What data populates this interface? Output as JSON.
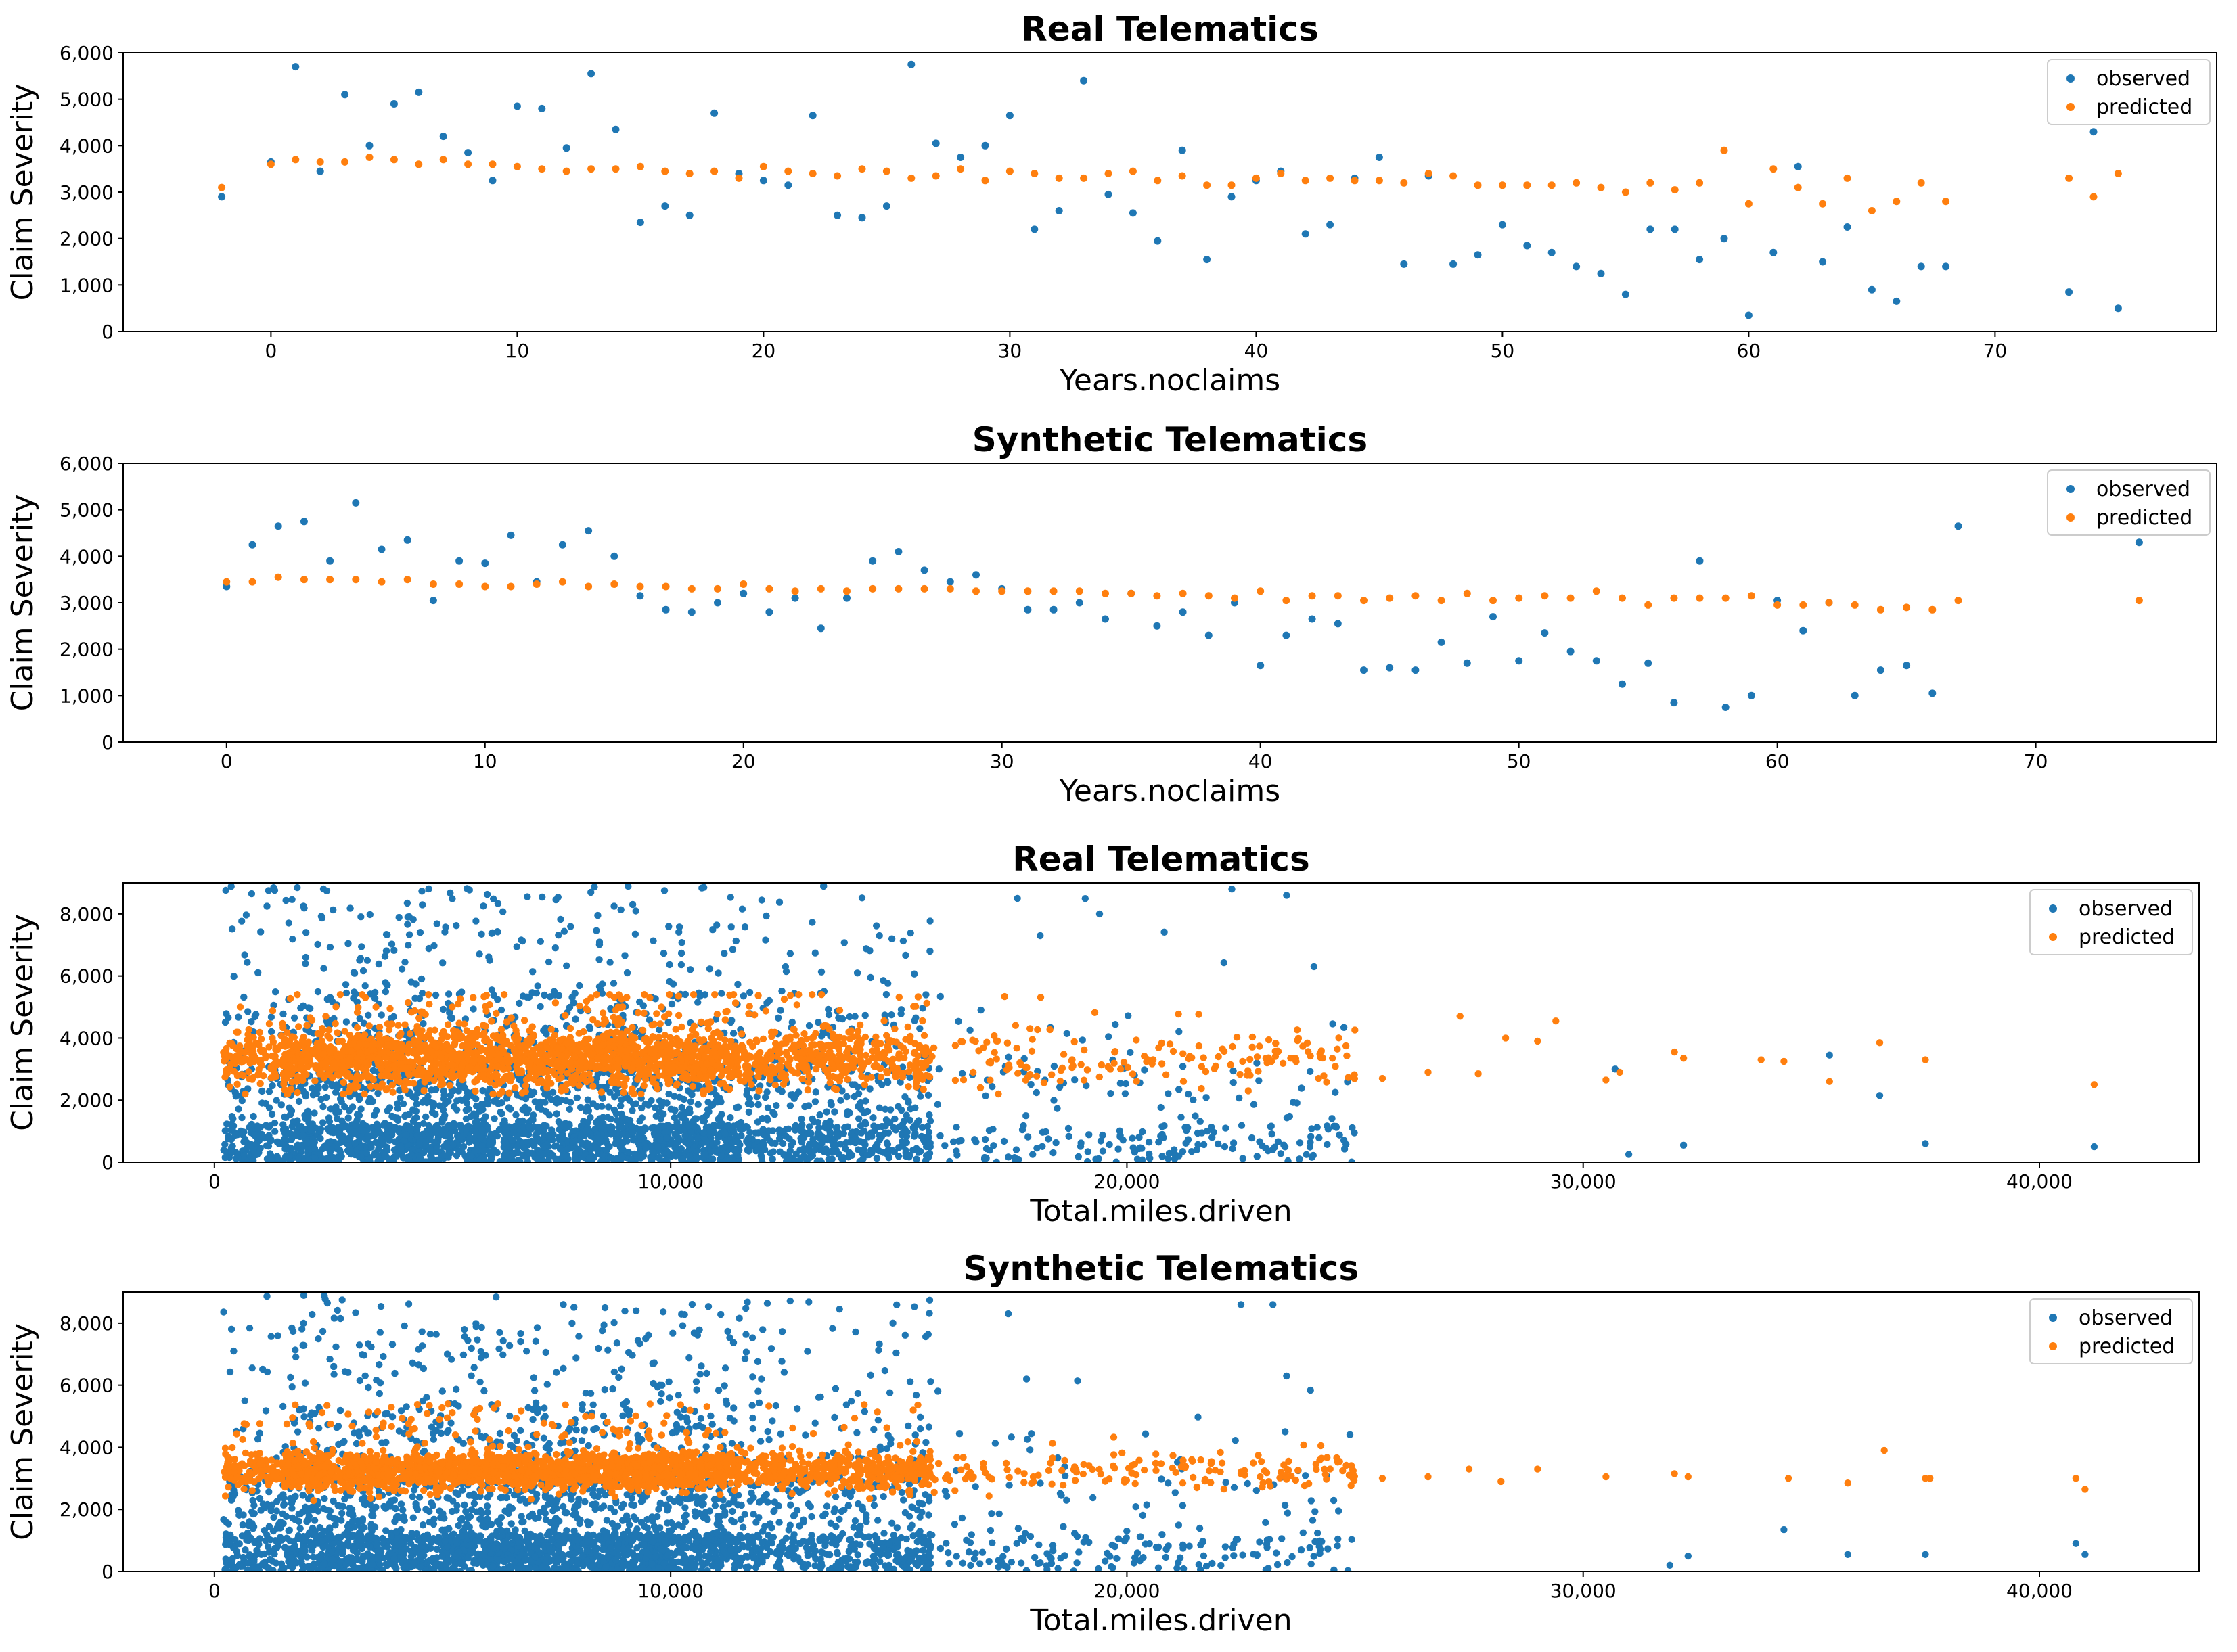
{
  "colors": {
    "observed": "#1f77b4",
    "predicted": "#ff7f0e"
  },
  "chart_data": [
    {
      "type": "scatter",
      "title": "Real Telematics",
      "xlabel": "Years.noclaims",
      "ylabel": "Claim Severity",
      "xlim": [
        -6,
        79
      ],
      "ylim": [
        0,
        6000
      ],
      "xticks": [
        0,
        10,
        20,
        30,
        40,
        50,
        60,
        70
      ],
      "xtick_labels": [
        "0",
        "10",
        "20",
        "30",
        "40",
        "50",
        "60",
        "70"
      ],
      "yticks": [
        0,
        1000,
        2000,
        3000,
        4000,
        5000,
        6000
      ],
      "ytick_labels": [
        "0",
        "1,000",
        "2,000",
        "3,000",
        "4,000",
        "5,000",
        "6,000"
      ],
      "legend": {
        "placement": "top-right",
        "entries": [
          "observed",
          "predicted"
        ]
      },
      "series": [
        {
          "name": "observed",
          "x": [
            -2,
            0,
            1,
            2,
            3,
            4,
            5,
            6,
            7,
            8,
            9,
            10,
            11,
            12,
            13,
            14,
            15,
            16,
            17,
            18,
            19,
            20,
            21,
            22,
            23,
            24,
            25,
            26,
            27,
            28,
            29,
            30,
            31,
            32,
            33,
            34,
            35,
            36,
            37,
            38,
            39,
            40,
            41,
            42,
            43,
            44,
            45,
            46,
            47,
            48,
            49,
            50,
            51,
            52,
            53,
            54,
            55,
            56,
            57,
            58,
            59,
            60,
            61,
            62,
            63,
            64,
            65,
            66,
            67,
            68,
            73,
            74,
            75
          ],
          "y": [
            2900,
            3650,
            5700,
            3450,
            5100,
            4000,
            4900,
            5150,
            4200,
            3850,
            3250,
            4850,
            4800,
            3950,
            5550,
            4350,
            2350,
            2700,
            2500,
            4700,
            3400,
            3250,
            3150,
            4650,
            2500,
            2450,
            2700,
            5750,
            4050,
            3750,
            4000,
            4650,
            2200,
            2600,
            5400,
            2950,
            2550,
            1950,
            3900,
            1550,
            2900,
            3250,
            3450,
            2100,
            2300,
            3300,
            3750,
            1450,
            3350,
            1450,
            1650,
            2300,
            1850,
            1700,
            1400,
            1250,
            800,
            2200,
            2200,
            1550,
            2000,
            350,
            1700,
            3550,
            1500,
            2250,
            900,
            650,
            1400,
            1400,
            850,
            4300,
            500
          ]
        },
        {
          "name": "predicted",
          "x": [
            -2,
            0,
            1,
            2,
            3,
            4,
            5,
            6,
            7,
            8,
            9,
            10,
            11,
            12,
            13,
            14,
            15,
            16,
            17,
            18,
            19,
            20,
            21,
            22,
            23,
            24,
            25,
            26,
            27,
            28,
            29,
            30,
            31,
            32,
            33,
            34,
            35,
            36,
            37,
            38,
            39,
            40,
            41,
            42,
            43,
            44,
            45,
            46,
            47,
            48,
            49,
            50,
            51,
            52,
            53,
            54,
            55,
            56,
            57,
            58,
            59,
            60,
            61,
            62,
            63,
            64,
            65,
            66,
            67,
            68,
            73,
            74,
            75
          ],
          "y": [
            3100,
            3600,
            3700,
            3650,
            3650,
            3750,
            3700,
            3600,
            3700,
            3600,
            3600,
            3550,
            3500,
            3450,
            3500,
            3500,
            3550,
            3450,
            3400,
            3450,
            3300,
            3550,
            3450,
            3400,
            3350,
            3500,
            3450,
            3300,
            3350,
            3500,
            3250,
            3450,
            3400,
            3300,
            3300,
            3400,
            3450,
            3250,
            3350,
            3150,
            3150,
            3300,
            3400,
            3250,
            3300,
            3250,
            3250,
            3200,
            3400,
            3350,
            3150,
            3150,
            3150,
            3150,
            3200,
            3100,
            3000,
            3200,
            3050,
            3200,
            3900,
            2750,
            3500,
            3100,
            2750,
            3300,
            2600,
            2800,
            3200,
            2800,
            3300,
            2900,
            3400
          ]
        }
      ]
    },
    {
      "type": "scatter",
      "title": "Synthetic Telematics",
      "xlabel": "Years.noclaims",
      "ylabel": "Claim Severity",
      "xlim": [
        -4,
        77
      ],
      "ylim": [
        0,
        6000
      ],
      "xticks": [
        0,
        10,
        20,
        30,
        40,
        50,
        60,
        70
      ],
      "xtick_labels": [
        "0",
        "10",
        "20",
        "30",
        "40",
        "50",
        "60",
        "70"
      ],
      "yticks": [
        0,
        1000,
        2000,
        3000,
        4000,
        5000,
        6000
      ],
      "ytick_labels": [
        "0",
        "1,000",
        "2,000",
        "3,000",
        "4,000",
        "5,000",
        "6,000"
      ],
      "legend": {
        "placement": "top-right",
        "entries": [
          "observed",
          "predicted"
        ]
      },
      "series": [
        {
          "name": "observed",
          "x": [
            0,
            1,
            2,
            3,
            4,
            5,
            6,
            7,
            8,
            9,
            10,
            11,
            12,
            13,
            14,
            15,
            16,
            17,
            18,
            19,
            20,
            21,
            22,
            23,
            24,
            25,
            26,
            27,
            28,
            29,
            30,
            31,
            32,
            33,
            34,
            35,
            36,
            37,
            38,
            39,
            40,
            41,
            42,
            43,
            44,
            45,
            46,
            47,
            48,
            49,
            50,
            51,
            52,
            53,
            54,
            55,
            56,
            57,
            58,
            59,
            60,
            61,
            62,
            63,
            64,
            65,
            66,
            67,
            74
          ],
          "y": [
            3350,
            4250,
            4650,
            4750,
            3900,
            5150,
            4150,
            4350,
            3050,
            3900,
            3850,
            4450,
            3450,
            4250,
            4550,
            4000,
            3150,
            2850,
            2800,
            3000,
            3200,
            2800,
            3100,
            2450,
            3100,
            3900,
            4100,
            3700,
            3450,
            3600,
            3300,
            2850,
            2850,
            3000,
            2650,
            3200,
            2500,
            2800,
            2300,
            3000,
            1650,
            2300,
            2650,
            2550,
            1550,
            1600,
            1550,
            2150,
            1700,
            2700,
            1750,
            2350,
            1950,
            1750,
            1250,
            1700,
            850,
            3900,
            750,
            1000,
            3050,
            2400,
            3000,
            1000,
            1550,
            1650,
            1050,
            4650,
            4300
          ]
        },
        {
          "name": "predicted",
          "x": [
            0,
            1,
            2,
            3,
            4,
            5,
            6,
            7,
            8,
            9,
            10,
            11,
            12,
            13,
            14,
            15,
            16,
            17,
            18,
            19,
            20,
            21,
            22,
            23,
            24,
            25,
            26,
            27,
            28,
            29,
            30,
            31,
            32,
            33,
            34,
            35,
            36,
            37,
            38,
            39,
            40,
            41,
            42,
            43,
            44,
            45,
            46,
            47,
            48,
            49,
            50,
            51,
            52,
            53,
            54,
            55,
            56,
            57,
            58,
            59,
            60,
            61,
            62,
            63,
            64,
            65,
            66,
            67,
            74
          ],
          "y": [
            3450,
            3450,
            3550,
            3500,
            3500,
            3500,
            3450,
            3500,
            3400,
            3400,
            3350,
            3350,
            3400,
            3450,
            3350,
            3400,
            3350,
            3350,
            3300,
            3300,
            3400,
            3300,
            3250,
            3300,
            3250,
            3300,
            3300,
            3300,
            3300,
            3250,
            3250,
            3250,
            3250,
            3250,
            3200,
            3200,
            3150,
            3200,
            3150,
            3100,
            3250,
            3050,
            3150,
            3150,
            3050,
            3100,
            3150,
            3050,
            3200,
            3050,
            3100,
            3150,
            3100,
            3250,
            3100,
            2950,
            3100,
            3100,
            3100,
            3150,
            2950,
            2950,
            3000,
            2950,
            2850,
            2900,
            2850,
            3050,
            3050
          ]
        }
      ]
    },
    {
      "type": "scatter",
      "title": "Real Telematics",
      "xlabel": "Total.miles.driven",
      "ylabel": "Claim Severity",
      "xlim": [
        -2000,
        43500
      ],
      "ylim": [
        0,
        9000
      ],
      "xticks": [
        0,
        10000,
        20000,
        30000,
        40000
      ],
      "xtick_labels": [
        "0",
        "10,000",
        "20,000",
        "30,000",
        "40,000"
      ],
      "yticks": [
        0,
        2000,
        4000,
        6000,
        8000
      ],
      "ytick_labels": [
        "0",
        "2,000",
        "4,000",
        "6,000",
        "8,000"
      ],
      "legend": {
        "placement": "top-right",
        "entries": [
          "observed",
          "predicted"
        ]
      },
      "series": [
        {
          "name": "observed",
          "x": [
            35400,
            36500,
            37500,
            41200,
            30700,
            31000,
            32200,
            24100,
            23500,
            22300,
            19400,
            17600,
            18100,
            16800
          ],
          "y": [
            3450,
            2150,
            600,
            500,
            3000,
            250,
            550,
            6300,
            8600,
            8800,
            8000,
            8500,
            7300,
            4900
          ]
        },
        {
          "name": "predicted",
          "x": [
            41200,
            37500,
            36500,
            35400,
            34400,
            33900,
            32200,
            32000,
            30800,
            30500,
            29400,
            29000,
            28300,
            27700,
            27300,
            26600,
            25600,
            24800,
            24200
          ],
          "y": [
            2500,
            3300,
            3850,
            2600,
            3250,
            3300,
            3350,
            3550,
            2900,
            2650,
            4550,
            3900,
            4000,
            2850,
            4700,
            2900,
            2700,
            3750,
            2700
          ]
        }
      ],
      "dense_cloud": {
        "count_observed": 3200,
        "count_predicted": 2400,
        "seed": 11,
        "description": "observed scattered 0–9000 concentrated below 2,000, predicted concentrated 2,500–4,500"
      }
    },
    {
      "type": "scatter",
      "title": "Synthetic Telematics",
      "xlabel": "Total.miles.driven",
      "ylabel": "Claim Severity",
      "xlim": [
        -2000,
        43500
      ],
      "ylim": [
        0,
        9000
      ],
      "xticks": [
        0,
        10000,
        20000,
        30000,
        40000
      ],
      "xtick_labels": [
        "0",
        "10,000",
        "20,000",
        "30,000",
        "40,000"
      ],
      "yticks": [
        0,
        2000,
        4000,
        6000,
        8000
      ],
      "ytick_labels": [
        "0",
        "2,000",
        "4,000",
        "6,000",
        "8,000"
      ],
      "legend": {
        "placement": "top-right",
        "entries": [
          "observed",
          "predicted"
        ]
      },
      "series": [
        {
          "name": "observed",
          "x": [
            40800,
            41000,
            37500,
            35800,
            34400,
            32300,
            31900,
            22500,
            23200,
            23500,
            17400,
            17800
          ],
          "y": [
            900,
            550,
            550,
            550,
            1350,
            500,
            200,
            8600,
            8600,
            6300,
            8300,
            6200
          ]
        },
        {
          "name": "predicted",
          "x": [
            41000,
            40800,
            37600,
            37500,
            36600,
            35800,
            34500,
            32300,
            32000,
            30500,
            29000,
            28200,
            27500,
            26600,
            25600
          ],
          "y": [
            2650,
            3000,
            3000,
            3000,
            3900,
            2850,
            3000,
            3050,
            3150,
            3050,
            3300,
            2900,
            3300,
            3050,
            3000
          ]
        }
      ],
      "dense_cloud": {
        "count_observed": 3200,
        "count_predicted": 2400,
        "seed": 23,
        "description": "observed scattered 0–9000 concentrated below 3,000, predicted concentrated 2,800–4,000"
      }
    }
  ]
}
